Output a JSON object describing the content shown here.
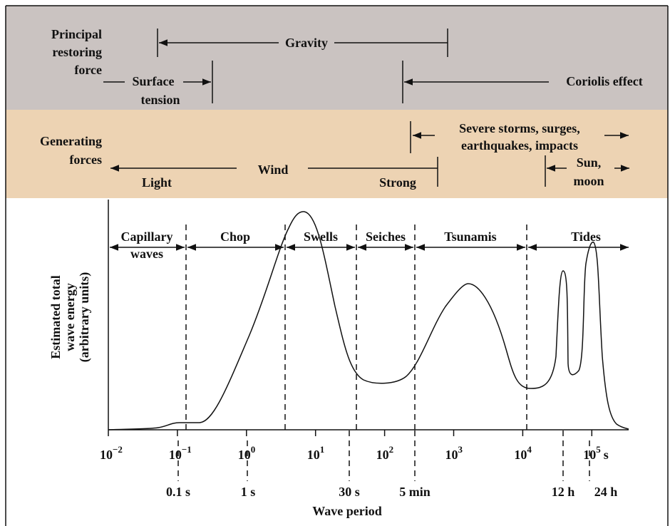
{
  "restoring": {
    "label": [
      "Principal",
      "restoring",
      "force"
    ],
    "gravity": "Gravity",
    "surface_tension": [
      "Surface",
      "tension"
    ],
    "coriolis": "Coriolis effect"
  },
  "generating": {
    "label": [
      "Generating",
      "forces"
    ],
    "wind": "Wind",
    "light": "Light",
    "strong": "Strong",
    "storms": [
      "Severe storms, surges,",
      "earthquakes, impacts"
    ],
    "sun_moon": [
      "Sun,",
      "moon"
    ]
  },
  "regions": [
    [
      "Capillary",
      "waves"
    ],
    [
      "Chop"
    ],
    [
      "Swells"
    ],
    [
      "Seiches"
    ],
    [
      "Tsunamis"
    ],
    [
      "Tides"
    ]
  ],
  "y_label": [
    "Estimated total",
    "wave energy",
    "(arbitrary units)"
  ],
  "x_ticks": [
    {
      "base": "10",
      "exp": "−2"
    },
    {
      "base": "10",
      "exp": "−1"
    },
    {
      "base": "10",
      "exp": "0"
    },
    {
      "base": "10",
      "exp": "1"
    },
    {
      "base": "10",
      "exp": "2"
    },
    {
      "base": "10",
      "exp": "3"
    },
    {
      "base": "10",
      "exp": "4"
    },
    {
      "base": "10",
      "exp": "5",
      "unit": "s"
    }
  ],
  "period_marks": [
    "0.1 s",
    "1 s",
    "30 s",
    "5 min",
    "12 h",
    "24 h"
  ],
  "x_label": "Wave period"
}
